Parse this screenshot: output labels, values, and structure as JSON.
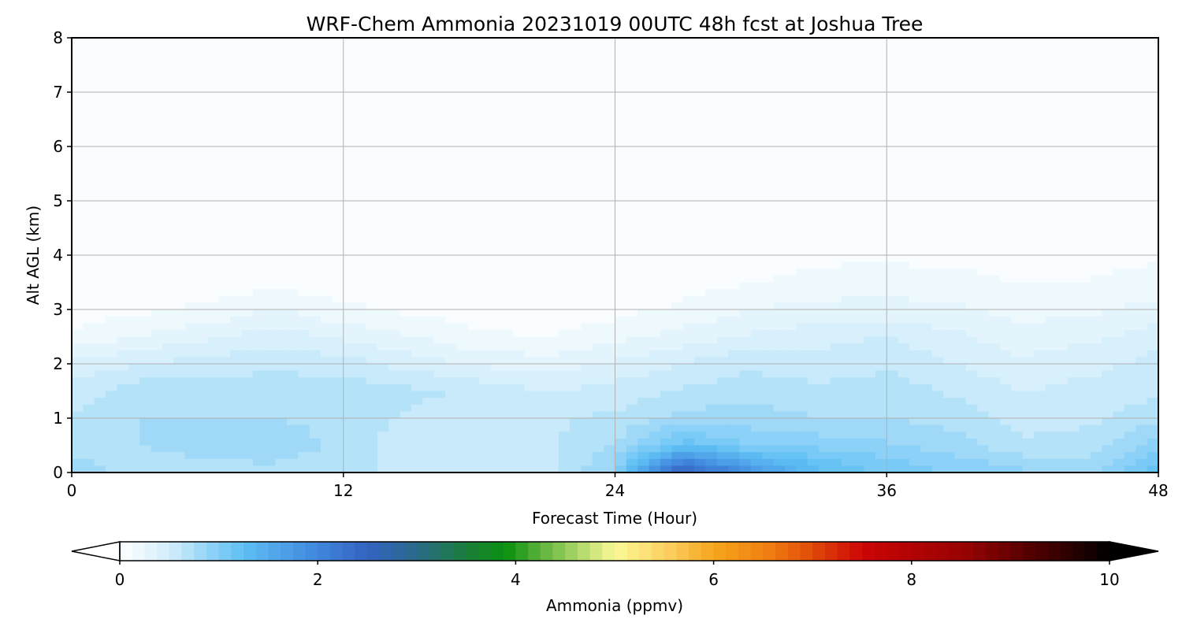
{
  "chart_data": {
    "type": "heatmap",
    "title": "WRF-Chem Ammonia  20231019 00UTC 48h fcst at Joshua Tree",
    "xlabel": "Forecast Time (Hour)",
    "ylabel": "Alt AGL (km)",
    "xlim": [
      0,
      48
    ],
    "ylim": [
      0,
      8
    ],
    "x_ticks": [
      "0",
      "12",
      "24",
      "36",
      "48"
    ],
    "y_ticks": [
      "0",
      "1",
      "2",
      "3",
      "4",
      "5",
      "6",
      "7",
      "8"
    ],
    "grid": true,
    "colorbar": {
      "label": "Ammonia  (ppmv)",
      "range": [
        0,
        10
      ],
      "ticks": [
        "0",
        "2",
        "4",
        "6",
        "8",
        "10"
      ],
      "extend": "both",
      "stops": [
        {
          "v": 0.0,
          "c": "#ffffff"
        },
        {
          "v": 0.5,
          "c": "#d2eefb"
        },
        {
          "v": 1.0,
          "c": "#82cdf6"
        },
        {
          "v": 1.25,
          "c": "#5fbff5"
        },
        {
          "v": 2.0,
          "c": "#3f86dd"
        },
        {
          "v": 2.5,
          "c": "#3463c2"
        },
        {
          "v": 3.0,
          "c": "#2a6a8a"
        },
        {
          "v": 3.5,
          "c": "#1a7d3a"
        },
        {
          "v": 3.9,
          "c": "#0b9010"
        },
        {
          "v": 4.4,
          "c": "#7cc14e"
        },
        {
          "v": 5.0,
          "c": "#fafa96"
        },
        {
          "v": 5.6,
          "c": "#fbca5a"
        },
        {
          "v": 6.0,
          "c": "#f6a51c"
        },
        {
          "v": 6.6,
          "c": "#ef7a10"
        },
        {
          "v": 7.0,
          "c": "#e14a08"
        },
        {
          "v": 7.5,
          "c": "#cc0505"
        },
        {
          "v": 8.5,
          "c": "#9a0202"
        },
        {
          "v": 9.3,
          "c": "#4a0000"
        },
        {
          "v": 10.0,
          "c": "#000000"
        }
      ]
    },
    "field": {
      "hours": [
        0,
        3,
        6,
        9,
        12,
        15,
        18,
        21,
        24,
        27,
        30,
        33,
        36,
        39,
        42,
        45,
        48
      ],
      "alt_km": [
        0,
        0.5,
        1,
        1.5,
        2,
        2.5,
        3,
        3.5,
        4,
        5,
        6,
        7,
        8
      ],
      "values": [
        [
          0.8,
          0.7,
          0.7,
          0.7,
          0.65,
          0.6,
          0.6,
          0.6,
          0.9,
          2.6,
          1.8,
          1.3,
          1.1,
          1.0,
          0.9,
          0.8,
          1.2
        ],
        [
          0.7,
          0.75,
          0.8,
          0.85,
          0.7,
          0.55,
          0.55,
          0.6,
          0.75,
          1.2,
          1.0,
          0.95,
          0.9,
          0.8,
          0.65,
          0.7,
          0.95
        ],
        [
          0.65,
          0.75,
          0.75,
          0.75,
          0.7,
          0.6,
          0.6,
          0.6,
          0.65,
          0.8,
          0.8,
          0.75,
          0.75,
          0.7,
          0.55,
          0.6,
          0.7
        ],
        [
          0.55,
          0.7,
          0.7,
          0.7,
          0.7,
          0.65,
          0.6,
          0.5,
          0.55,
          0.65,
          0.7,
          0.65,
          0.7,
          0.6,
          0.5,
          0.55,
          0.6
        ],
        [
          0.4,
          0.5,
          0.55,
          0.6,
          0.55,
          0.45,
          0.35,
          0.3,
          0.4,
          0.5,
          0.6,
          0.55,
          0.6,
          0.5,
          0.4,
          0.45,
          0.55
        ],
        [
          0.15,
          0.25,
          0.35,
          0.45,
          0.35,
          0.25,
          0.15,
          0.12,
          0.2,
          0.3,
          0.4,
          0.45,
          0.5,
          0.4,
          0.3,
          0.35,
          0.45
        ],
        [
          0.05,
          0.1,
          0.15,
          0.25,
          0.15,
          0.1,
          0.05,
          0.05,
          0.08,
          0.15,
          0.25,
          0.3,
          0.3,
          0.28,
          0.2,
          0.22,
          0.3
        ],
        [
          0.02,
          0.04,
          0.06,
          0.08,
          0.06,
          0.04,
          0.03,
          0.03,
          0.04,
          0.08,
          0.12,
          0.16,
          0.18,
          0.16,
          0.12,
          0.13,
          0.18
        ],
        [
          0.02,
          0.03,
          0.03,
          0.04,
          0.03,
          0.03,
          0.02,
          0.02,
          0.03,
          0.05,
          0.08,
          0.1,
          0.1,
          0.09,
          0.08,
          0.08,
          0.1
        ],
        [
          0.02,
          0.02,
          0.02,
          0.02,
          0.02,
          0.02,
          0.02,
          0.02,
          0.02,
          0.02,
          0.03,
          0.03,
          0.03,
          0.03,
          0.03,
          0.03,
          0.03
        ],
        [
          0.02,
          0.02,
          0.02,
          0.02,
          0.02,
          0.02,
          0.02,
          0.02,
          0.02,
          0.02,
          0.02,
          0.02,
          0.02,
          0.02,
          0.02,
          0.02,
          0.02
        ],
        [
          0.02,
          0.02,
          0.02,
          0.02,
          0.02,
          0.02,
          0.02,
          0.02,
          0.02,
          0.02,
          0.02,
          0.02,
          0.02,
          0.02,
          0.02,
          0.02,
          0.02
        ],
        [
          0.02,
          0.02,
          0.02,
          0.02,
          0.02,
          0.02,
          0.02,
          0.02,
          0.02,
          0.02,
          0.02,
          0.02,
          0.02,
          0.02,
          0.02,
          0.02,
          0.02
        ]
      ]
    }
  }
}
